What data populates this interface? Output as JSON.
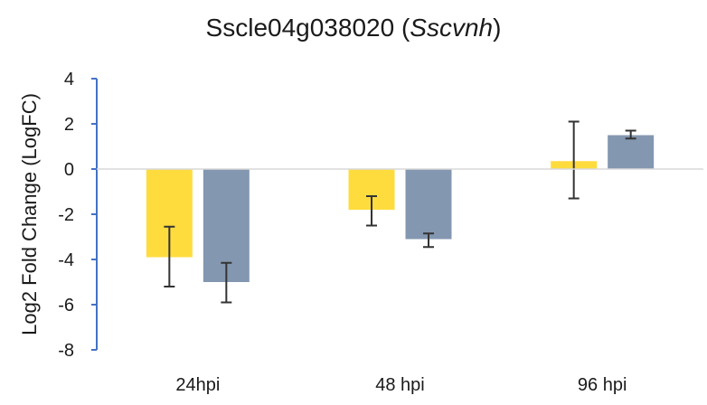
{
  "chart_data": {
    "type": "bar",
    "title_main": "Sscle04g038020 (",
    "title_italic": "Sscvnh",
    "title_close": ")",
    "xlabel": "",
    "ylabel": "Log2 Fold Change (LogFC)",
    "categories": [
      "24hpi",
      "48 hpi",
      "96 hpi"
    ],
    "ylim": [
      -8,
      4
    ],
    "yticks": [
      "4",
      "2",
      "0",
      "-2",
      "-4",
      "-6",
      "-8"
    ],
    "grid": false,
    "legend": false,
    "series": [
      {
        "color": "#FFDC3E",
        "values": [
          -3.9,
          -1.8,
          0.35
        ],
        "error_low": [
          -5.2,
          -2.5,
          -1.3
        ],
        "error_high": [
          -2.55,
          -1.2,
          2.1
        ]
      },
      {
        "color": "#8497B0",
        "values": [
          -5.0,
          -3.1,
          1.5
        ],
        "error_low": [
          -5.9,
          -3.45,
          1.35
        ],
        "error_high": [
          -4.15,
          -2.85,
          1.7
        ]
      }
    ],
    "axis_color": "#4472C4"
  }
}
